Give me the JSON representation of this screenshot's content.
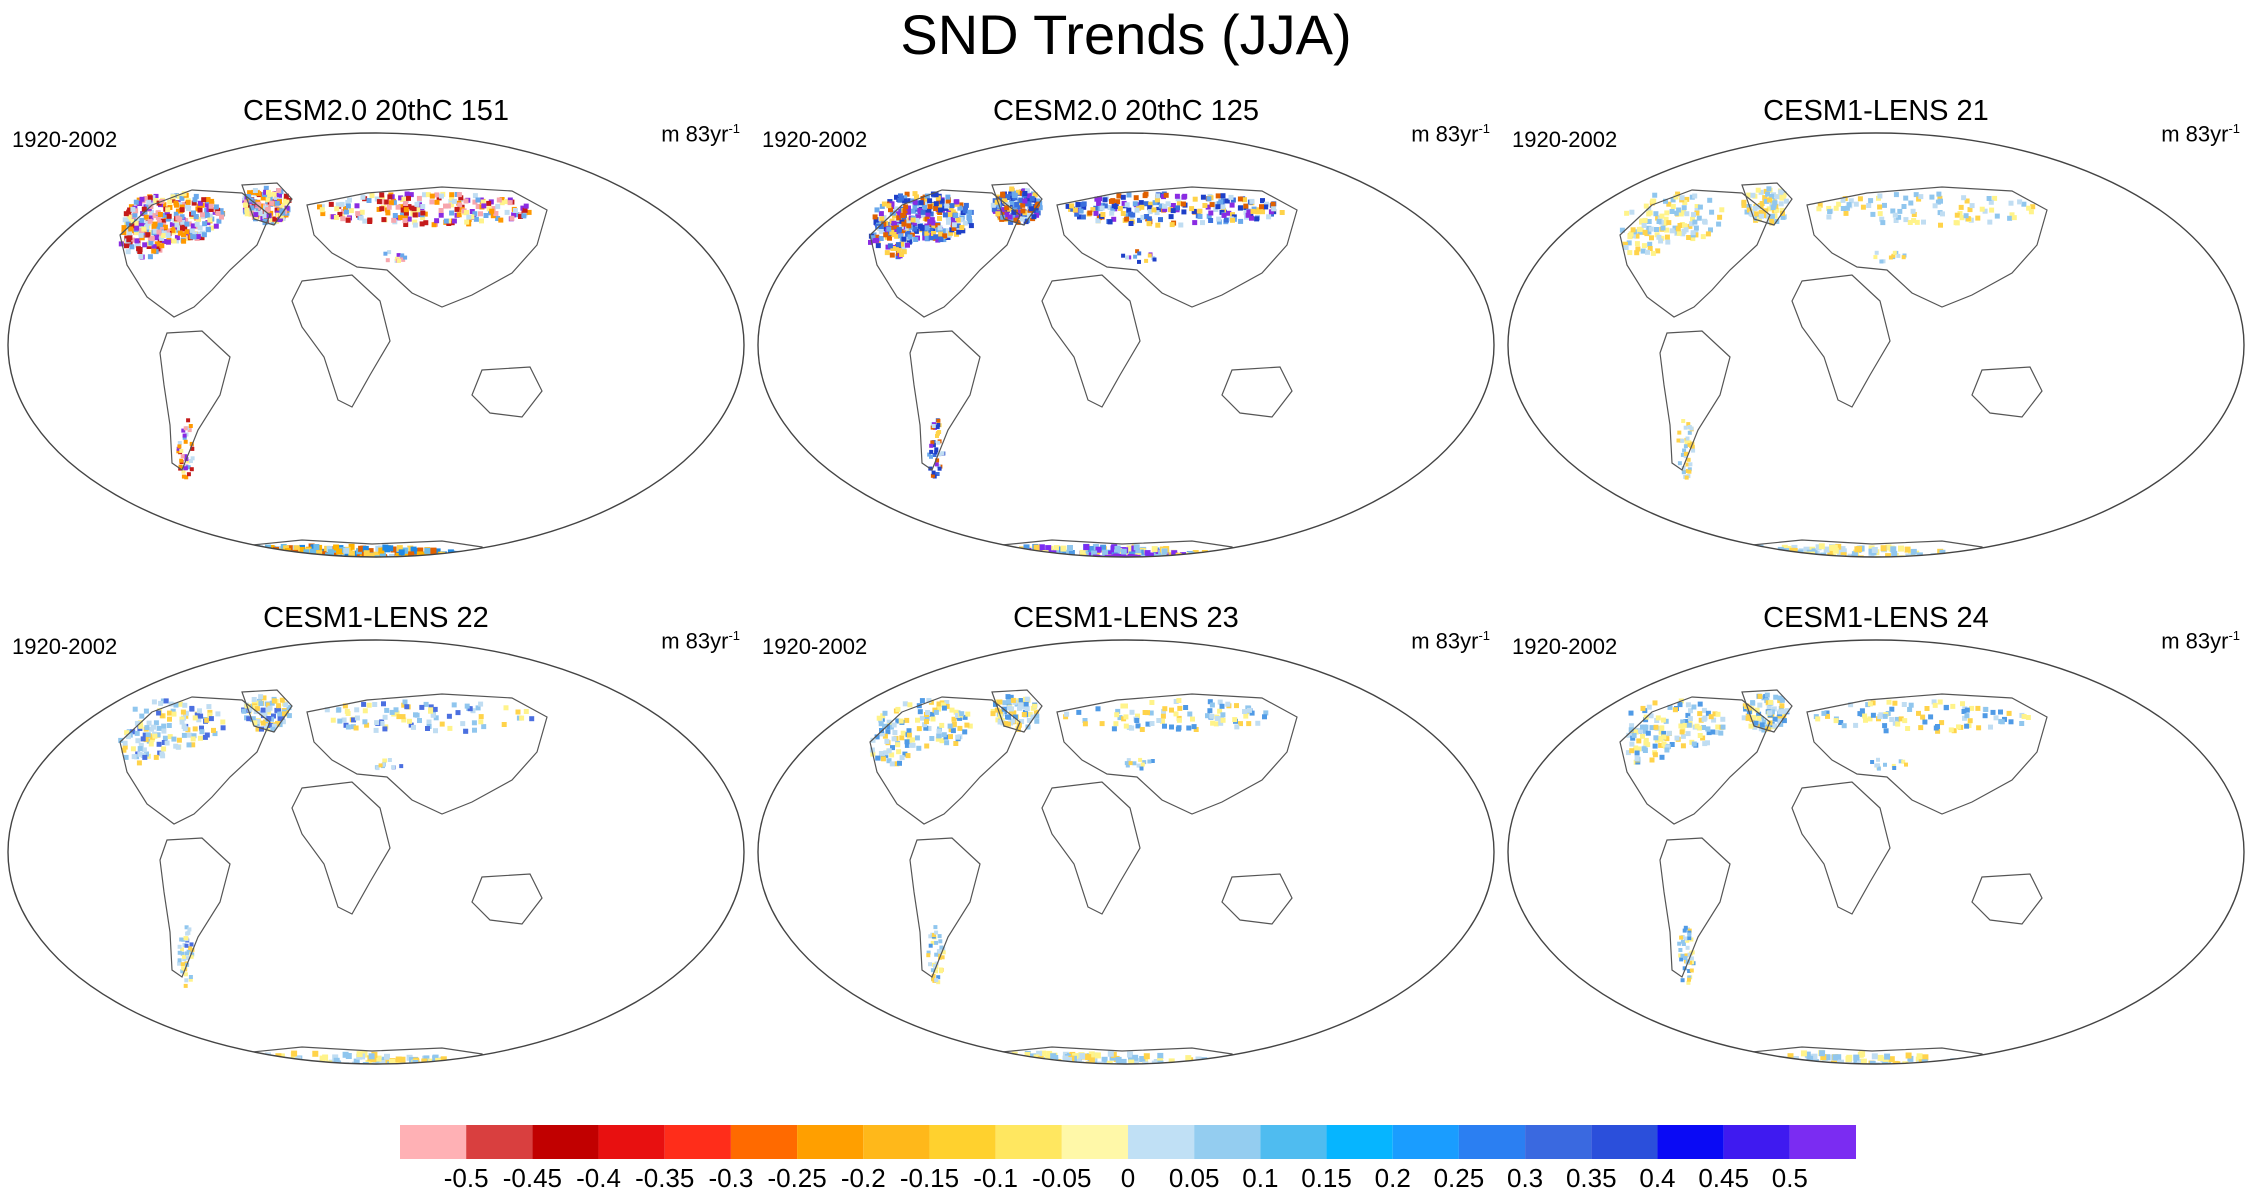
{
  "title": "SND Trends (JJA)",
  "panels": [
    {
      "title": "CESM2.0 20thC 151",
      "period": "1920-2002",
      "units": "m 83yr",
      "units_exp": "-1",
      "north_pattern": "strong_neg",
      "antarctic_pattern": "orange",
      "north_colors": [
        "#f7a6ad",
        "#c41a1a",
        "#8a2be2",
        "#ff9900",
        "#fff38a",
        "#c0ddf2",
        "#6aa9ec"
      ],
      "antarctic_colors": [
        "#ffb300",
        "#ffd34a",
        "#e06000",
        "#b2d8f2",
        "#6cbbe9",
        "#1e88e5"
      ]
    },
    {
      "title": "CESM2.0 20thC 125",
      "period": "1920-2002",
      "units": "m 83yr",
      "units_exp": "-1",
      "north_pattern": "strong_pos",
      "antarctic_pattern": "purple",
      "north_colors": [
        "#3a6fdc",
        "#1e3fc8",
        "#8a2be2",
        "#ffd34a",
        "#c0ddf2",
        "#6aa9ec",
        "#e06000"
      ],
      "antarctic_colors": [
        "#7b2cf2",
        "#4f9ae6",
        "#90c6ee",
        "#fff38a",
        "#ffd34a"
      ]
    },
    {
      "title": "CESM1-LENS 21",
      "period": "1920-2002",
      "units": "m 83yr",
      "units_exp": "-1",
      "north_pattern": "weak",
      "antarctic_pattern": "weak",
      "north_colors": [
        "#fff38a",
        "#c0ddf2",
        "#ffd34a",
        "#90c6ee"
      ],
      "antarctic_colors": [
        "#fff38a",
        "#c0ddf2",
        "#ffd34a",
        "#90c6ee"
      ]
    },
    {
      "title": "CESM1-LENS 22",
      "period": "1920-2002",
      "units": "m 83yr",
      "units_exp": "-1",
      "north_pattern": "weak",
      "antarctic_pattern": "weak",
      "north_colors": [
        "#fff38a",
        "#c0ddf2",
        "#ffd34a",
        "#90c6ee",
        "#4b6fe0"
      ],
      "antarctic_colors": [
        "#fff38a",
        "#c0ddf2",
        "#90c6ee",
        "#ffd34a"
      ]
    },
    {
      "title": "CESM1-LENS 23",
      "period": "1920-2002",
      "units": "m 83yr",
      "units_exp": "-1",
      "north_pattern": "weak",
      "antarctic_pattern": "weak",
      "north_colors": [
        "#c0ddf2",
        "#fff38a",
        "#4f9ae6",
        "#90c6ee",
        "#ffd34a"
      ],
      "antarctic_colors": [
        "#c0ddf2",
        "#90c6ee",
        "#fff38a",
        "#ffd34a"
      ]
    },
    {
      "title": "CESM1-LENS 24",
      "period": "1920-2002",
      "units": "m 83yr",
      "units_exp": "-1",
      "north_pattern": "weak",
      "antarctic_pattern": "weak",
      "north_colors": [
        "#fff38a",
        "#c0ddf2",
        "#4f9ae6",
        "#ffd34a",
        "#90c6ee"
      ],
      "antarctic_colors": [
        "#fff38a",
        "#c0ddf2",
        "#ffd34a",
        "#90c6ee"
      ]
    }
  ],
  "colorbar": {
    "labels": [
      "-0.5",
      "-0.45",
      "-0.4",
      "-0.35",
      "-0.3",
      "-0.25",
      "-0.2",
      "-0.15",
      "-0.1",
      "-0.05",
      "0",
      "0.05",
      "0.1",
      "0.15",
      "0.2",
      "0.25",
      "0.3",
      "0.35",
      "0.4",
      "0.45",
      "0.5"
    ],
    "colors": [
      "#ffb1b5",
      "#d93f3f",
      "#c10000",
      "#e81010",
      "#ff2d1a",
      "#ff6a00",
      "#ff9f00",
      "#ffb81a",
      "#ffd12e",
      "#ffe760",
      "#fff8a8",
      "#c0e0f5",
      "#94cdf0",
      "#4fbcf0",
      "#06b5ff",
      "#1a9dff",
      "#2b7ff2",
      "#3a69e0",
      "#2b4fdb",
      "#0a0af5",
      "#3f1af0",
      "#7b2cf2"
    ]
  }
}
